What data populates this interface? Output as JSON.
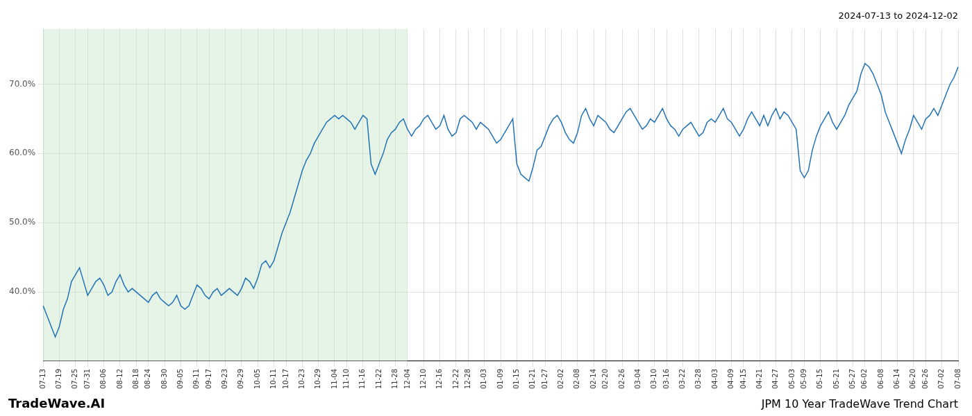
{
  "chart_data": {
    "type": "line",
    "title": "2024-07-13 to 2024-12-02",
    "annotations": [
      "TradeWave.AI",
      "JPM 10 Year TradeWave Trend Chart"
    ],
    "color": "#2171b5",
    "shaded_region": {
      "to": "12-04",
      "color": "#c8e6c9"
    },
    "grid": true,
    "ylim": [
      30,
      78
    ],
    "yticks": [
      {
        "value": 40.0,
        "label": "40.0%"
      },
      {
        "value": 50.0,
        "label": "50.0%"
      },
      {
        "value": 60.0,
        "label": "60.0%"
      },
      {
        "value": 70.0,
        "label": "70.0%"
      }
    ],
    "categories": [
      "07-13",
      null,
      null,
      null,
      "07-19",
      null,
      null,
      null,
      "07-25",
      null,
      null,
      "07-31",
      null,
      null,
      null,
      "08-06",
      null,
      null,
      null,
      "08-12",
      null,
      null,
      null,
      "08-18",
      null,
      null,
      "08-24",
      null,
      null,
      null,
      "08-30",
      null,
      null,
      null,
      "09-05",
      null,
      null,
      null,
      "09-11",
      null,
      null,
      "09-17",
      null,
      null,
      null,
      "09-23",
      null,
      null,
      null,
      "09-29",
      null,
      null,
      null,
      "10-05",
      null,
      null,
      null,
      "10-11",
      null,
      null,
      "10-17",
      null,
      null,
      null,
      "10-23",
      null,
      null,
      null,
      "10-29",
      null,
      null,
      null,
      "11-04",
      null,
      null,
      "11-10",
      null,
      null,
      null,
      "11-16",
      null,
      null,
      null,
      "11-22",
      null,
      null,
      null,
      "11-28",
      null,
      null,
      "12-04",
      null,
      null,
      null,
      "12-10",
      null,
      null,
      null,
      "12-16",
      null,
      null,
      null,
      "12-22",
      null,
      null,
      "12-28",
      null,
      null,
      null,
      "01-03",
      null,
      null,
      null,
      "01-09",
      null,
      null,
      null,
      "01-15",
      null,
      null,
      null,
      "01-21",
      null,
      null,
      "01-27",
      null,
      null,
      null,
      "02-02",
      null,
      null,
      null,
      "02-08",
      null,
      null,
      null,
      "02-14",
      null,
      null,
      "02-20",
      null,
      null,
      null,
      "02-26",
      null,
      null,
      null,
      "03-04",
      null,
      null,
      null,
      "03-10",
      null,
      null,
      "03-16",
      null,
      null,
      null,
      "03-22",
      null,
      null,
      null,
      "03-28",
      null,
      null,
      null,
      "04-03",
      null,
      null,
      null,
      "04-09",
      null,
      null,
      "04-15",
      null,
      null,
      null,
      "04-21",
      null,
      null,
      null,
      "04-27",
      null,
      null,
      null,
      "05-03",
      null,
      null,
      "05-09",
      null,
      null,
      null,
      "05-15",
      null,
      null,
      null,
      "05-21",
      null,
      null,
      null,
      "05-27",
      null,
      null,
      "06-02",
      null,
      null,
      null,
      "06-08",
      null,
      null,
      null,
      "06-14",
      null,
      null,
      null,
      "06-20",
      null,
      null,
      "06-26",
      null,
      null,
      null,
      "07-02",
      null,
      null,
      null,
      "07-08"
    ],
    "values": [
      38.0,
      36.5,
      35.0,
      33.5,
      35.0,
      37.5,
      39.0,
      41.5,
      42.5,
      43.5,
      41.5,
      39.5,
      40.5,
      41.5,
      42.0,
      41.0,
      39.5,
      40.0,
      41.5,
      42.5,
      41.0,
      40.0,
      40.5,
      40.0,
      39.5,
      39.0,
      38.5,
      39.5,
      40.0,
      39.0,
      38.5,
      38.0,
      38.5,
      39.5,
      38.0,
      37.5,
      38.0,
      39.5,
      41.0,
      40.5,
      39.5,
      39.0,
      40.0,
      40.5,
      39.5,
      40.0,
      40.5,
      40.0,
      39.5,
      40.5,
      42.0,
      41.5,
      40.5,
      42.0,
      44.0,
      44.5,
      43.5,
      44.5,
      46.5,
      48.5,
      50.0,
      51.5,
      53.5,
      55.5,
      57.5,
      59.0,
      60.0,
      61.5,
      62.5,
      63.5,
      64.5,
      65.0,
      65.5,
      65.0,
      65.5,
      65.0,
      64.5,
      63.5,
      64.5,
      65.5,
      65.0,
      58.5,
      57.0,
      58.5,
      60.0,
      62.0,
      63.0,
      63.5,
      64.5,
      65.0,
      63.5,
      62.5,
      63.5,
      64.0,
      65.0,
      65.5,
      64.5,
      63.5,
      64.0,
      65.5,
      63.5,
      62.5,
      63.0,
      65.0,
      65.5,
      65.0,
      64.5,
      63.5,
      64.5,
      64.0,
      63.5,
      62.5,
      61.5,
      62.0,
      63.0,
      64.0,
      65.0,
      58.5,
      57.0,
      56.5,
      56.0,
      58.0,
      60.5,
      61.0,
      62.5,
      64.0,
      65.0,
      65.5,
      64.5,
      63.0,
      62.0,
      61.5,
      63.0,
      65.5,
      66.5,
      65.0,
      64.0,
      65.5,
      65.0,
      64.5,
      63.5,
      63.0,
      64.0,
      65.0,
      66.0,
      66.5,
      65.5,
      64.5,
      63.5,
      64.0,
      65.0,
      64.5,
      65.5,
      66.5,
      65.0,
      64.0,
      63.5,
      62.5,
      63.5,
      64.0,
      64.5,
      63.5,
      62.5,
      63.0,
      64.5,
      65.0,
      64.5,
      65.5,
      66.5,
      65.0,
      64.5,
      63.5,
      62.5,
      63.5,
      65.0,
      66.0,
      65.0,
      64.0,
      65.5,
      64.0,
      65.5,
      66.5,
      65.0,
      66.0,
      65.5,
      64.5,
      63.5,
      57.5,
      56.5,
      57.5,
      60.5,
      62.5,
      64.0,
      65.0,
      66.0,
      64.5,
      63.5,
      64.5,
      65.5,
      67.0,
      68.0,
      69.0,
      71.5,
      73.0,
      72.5,
      71.5,
      70.0,
      68.5,
      66.0,
      64.5,
      63.0,
      61.5,
      60.0,
      62.0,
      63.5,
      65.5,
      64.5,
      63.5,
      65.0,
      65.5,
      66.5,
      65.5,
      67.0,
      68.5,
      70.0,
      71.0,
      72.5
    ]
  }
}
